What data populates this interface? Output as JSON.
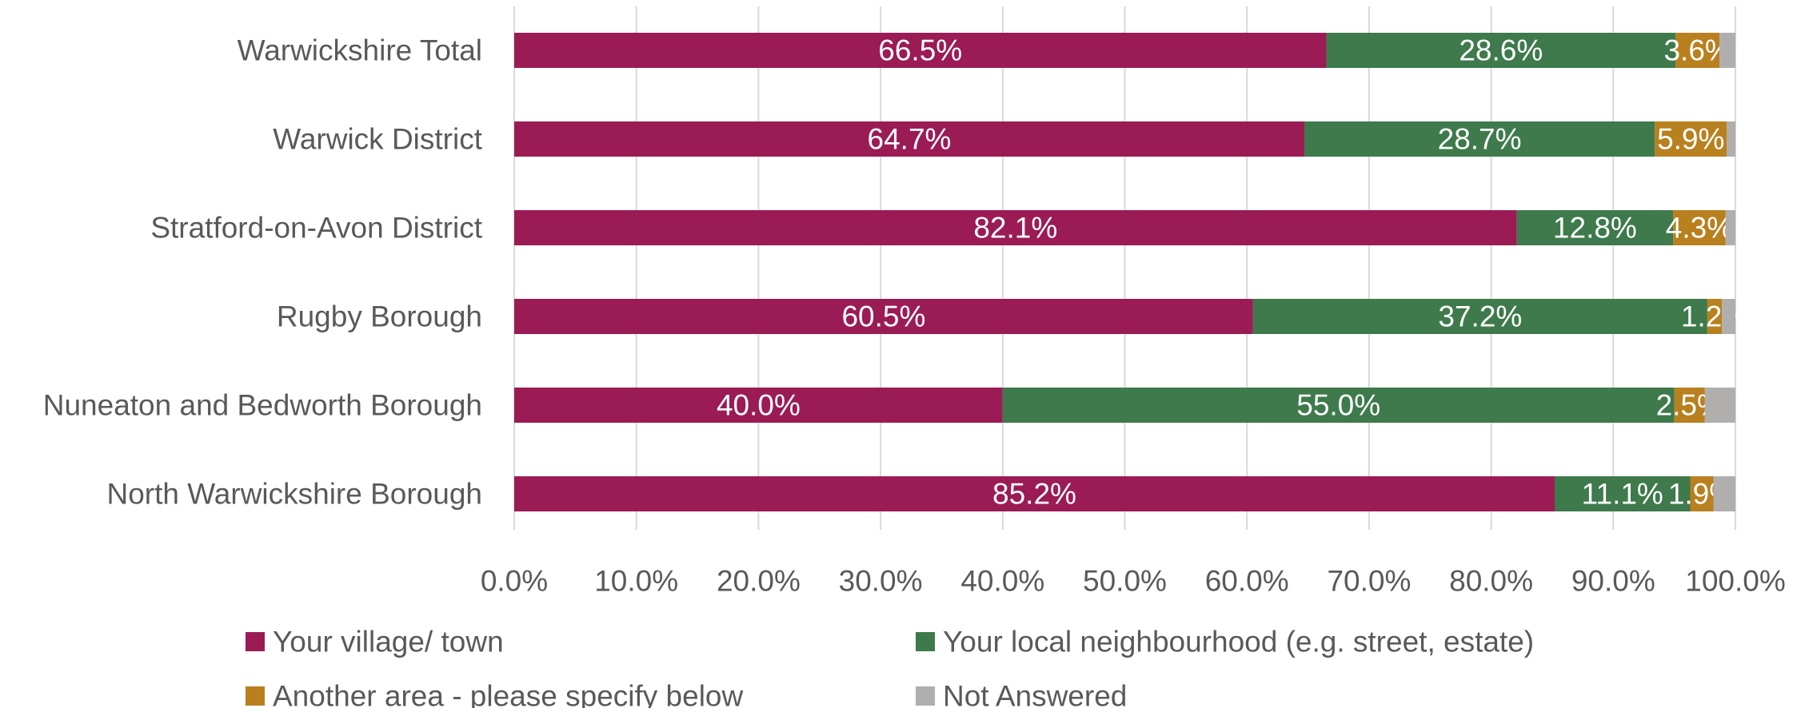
{
  "chart_data": {
    "type": "bar",
    "orientation": "horizontal",
    "stacked": true,
    "categories": [
      "Warwickshire Total",
      "Warwick District",
      "Stratford-on-Avon District",
      "Rugby Borough",
      "Nuneaton and Bedworth Borough",
      "North Warwickshire Borough"
    ],
    "series": [
      {
        "name": "Your village/ town",
        "color": "#9B1B55",
        "values": [
          66.5,
          64.7,
          82.1,
          60.5,
          40.0,
          85.2
        ],
        "labels": [
          "66.5%",
          "64.7%",
          "82.1%",
          "60.5%",
          "40.0%",
          "85.2%"
        ]
      },
      {
        "name": "Your local neighbourhood (e.g. street, estate)",
        "color": "#3E7A4B",
        "values": [
          28.6,
          28.7,
          12.8,
          37.2,
          55.0,
          11.1
        ],
        "labels": [
          "28.6%",
          "28.7%",
          "12.8%",
          "37.2%",
          "55.0%",
          "11.1%"
        ]
      },
      {
        "name": "Another area - please specify below",
        "color": "#B8801E",
        "values": [
          3.6,
          5.9,
          4.3,
          1.2,
          2.5,
          1.9
        ],
        "labels": [
          "3.6%",
          "5.9%",
          "4.3%",
          "1.2%",
          "2.5%",
          "1.9%"
        ]
      },
      {
        "name": "Not Answered",
        "color": "#B1AEAE",
        "values": [
          1.3,
          0.7,
          0.8,
          1.1,
          2.5,
          1.8
        ],
        "labels": [
          "",
          "",
          "",
          "",
          "",
          ""
        ]
      }
    ],
    "xlim": [
      0,
      100
    ],
    "xticks": [
      "0.0%",
      "10.0%",
      "20.0%",
      "30.0%",
      "40.0%",
      "50.0%",
      "60.0%",
      "70.0%",
      "80.0%",
      "90.0%",
      "100.0%"
    ],
    "grid": true,
    "legend_position": "bottom",
    "title": "",
    "xlabel": "",
    "ylabel": ""
  },
  "colors": {
    "grid": "#D9D9D9",
    "axis_text": "#595959",
    "label_text": "#FFFFFF"
  }
}
